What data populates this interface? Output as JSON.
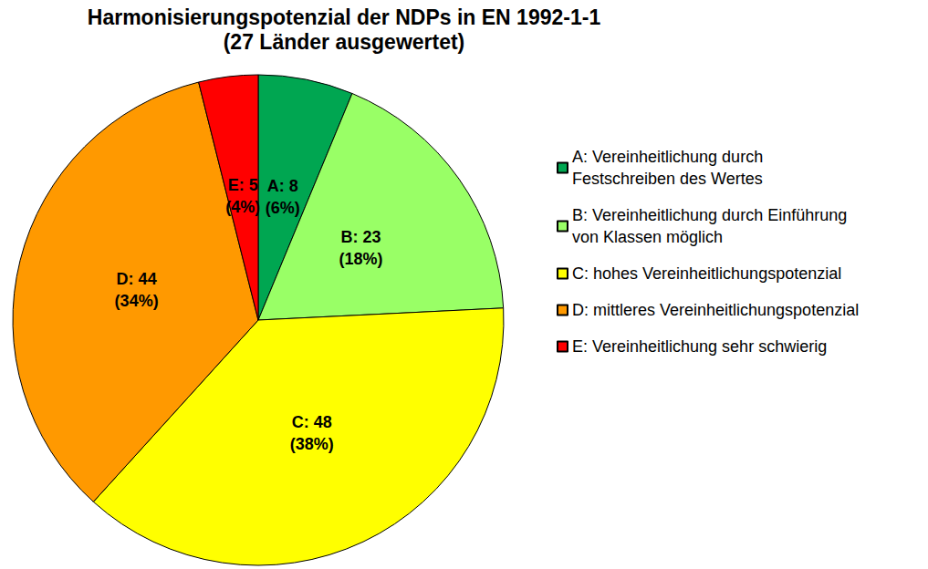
{
  "chart_data": {
    "type": "pie",
    "title": "Harmonisierungspotenzial der NDPs in EN 1992-1-1",
    "subtitle": "(27 Länder ausgewertet)",
    "categories": [
      "A: Vereinheitlichung durch\nFestschreiben des Wertes",
      "B: Vereinheitlichung durch Einführung\nvon Klassen möglich",
      "C: hohes Vereinheitlichungspotenzial",
      "D: mittleres Vereinheitlichungspotenzial",
      "E: Vereinheitlichung sehr schwierig"
    ],
    "values": [
      8,
      23,
      48,
      44,
      5
    ],
    "value_labels": [
      "A: 8\n(6%)",
      "B: 23\n(18%)",
      "C: 48\n(38%)",
      "D: 44\n(34%)",
      "E: 5\n(4%)"
    ],
    "colors": [
      "#00a651",
      "#99ff66",
      "#ffff00",
      "#ff9900",
      "#ff0000"
    ],
    "data_labels": true,
    "legend": "right"
  }
}
